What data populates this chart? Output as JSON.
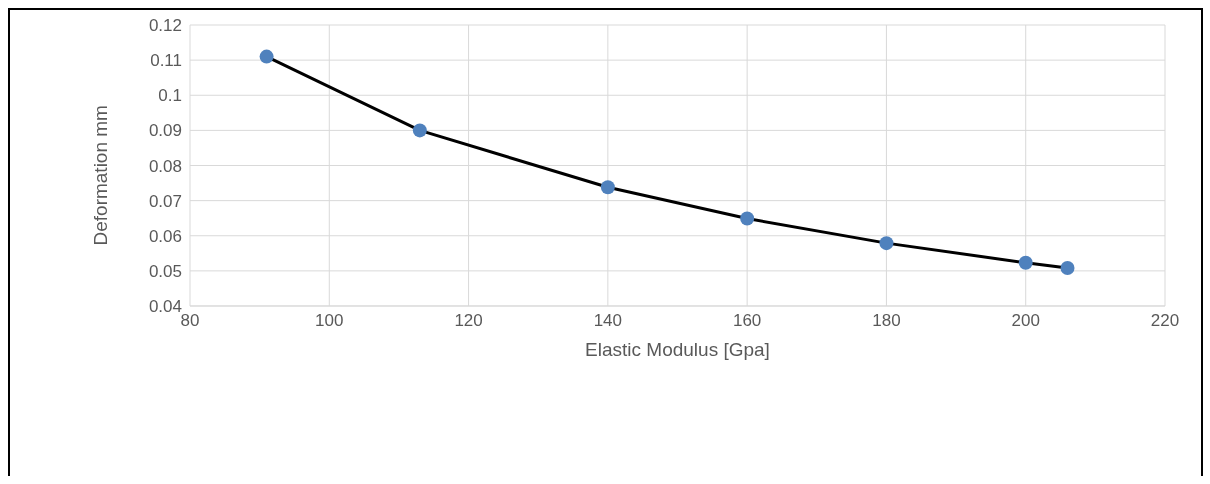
{
  "chart_data": {
    "type": "line",
    "xlabel": "Elastic Modulus [Gpa]",
    "ylabel": "Deformation mm",
    "x": [
      91,
      113,
      140,
      160,
      180,
      200,
      206
    ],
    "series": [
      {
        "color": "#4f81bd",
        "values": [
          0.111,
          0.09,
          0.0738,
          0.0649,
          0.0579,
          0.0523,
          0.0508
        ]
      }
    ],
    "xlim": [
      80,
      220
    ],
    "xticks": [
      80,
      100,
      120,
      140,
      160,
      180,
      200,
      220
    ],
    "ylim": [
      0.04,
      0.12
    ],
    "yticks": [
      0.04,
      0.05,
      0.06,
      0.07,
      0.08,
      0.09,
      0.1,
      0.11,
      0.12
    ],
    "grid": true,
    "marker": "circle",
    "line_style": "solid"
  }
}
